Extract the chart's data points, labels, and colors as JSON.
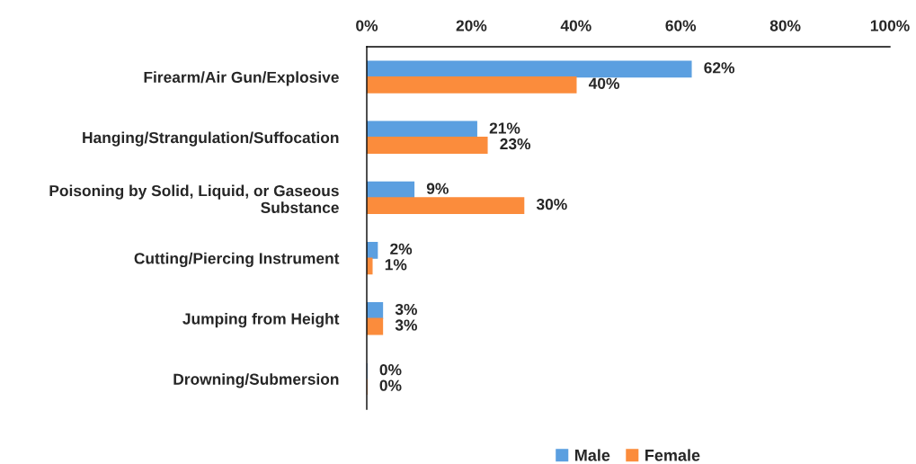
{
  "chart_data": {
    "type": "bar",
    "orientation": "horizontal",
    "categories": [
      "Firearm/Air Gun/Explosive",
      "Hanging/Strangulation/Suffocation",
      "Poisoning by Solid, Liquid, or Gaseous\nSubstance",
      "Cutting/Piercing Instrument",
      "Jumping from Height",
      "Drowning/Submersion"
    ],
    "series": [
      {
        "name": "Male",
        "color": "#5b9fe0",
        "values": [
          62,
          21,
          9,
          2,
          3,
          0
        ],
        "value_labels": [
          "62%",
          "21%",
          "9%",
          "2%",
          "3%",
          "0%"
        ]
      },
      {
        "name": "Female",
        "color": "#fb8c3c",
        "values": [
          40,
          23,
          30,
          1,
          3,
          0
        ],
        "value_labels": [
          "40%",
          "23%",
          "30%",
          "1%",
          "3%",
          "0%"
        ]
      }
    ],
    "xlim": [
      0,
      100
    ],
    "xticks": [
      {
        "value": 0,
        "label": "0%"
      },
      {
        "value": 20,
        "label": "20%"
      },
      {
        "value": 40,
        "label": "40%"
      },
      {
        "value": 60,
        "label": "60%"
      },
      {
        "value": 80,
        "label": "80%"
      },
      {
        "value": 100,
        "label": "100%"
      }
    ],
    "grid": false,
    "legend": "bottom"
  }
}
